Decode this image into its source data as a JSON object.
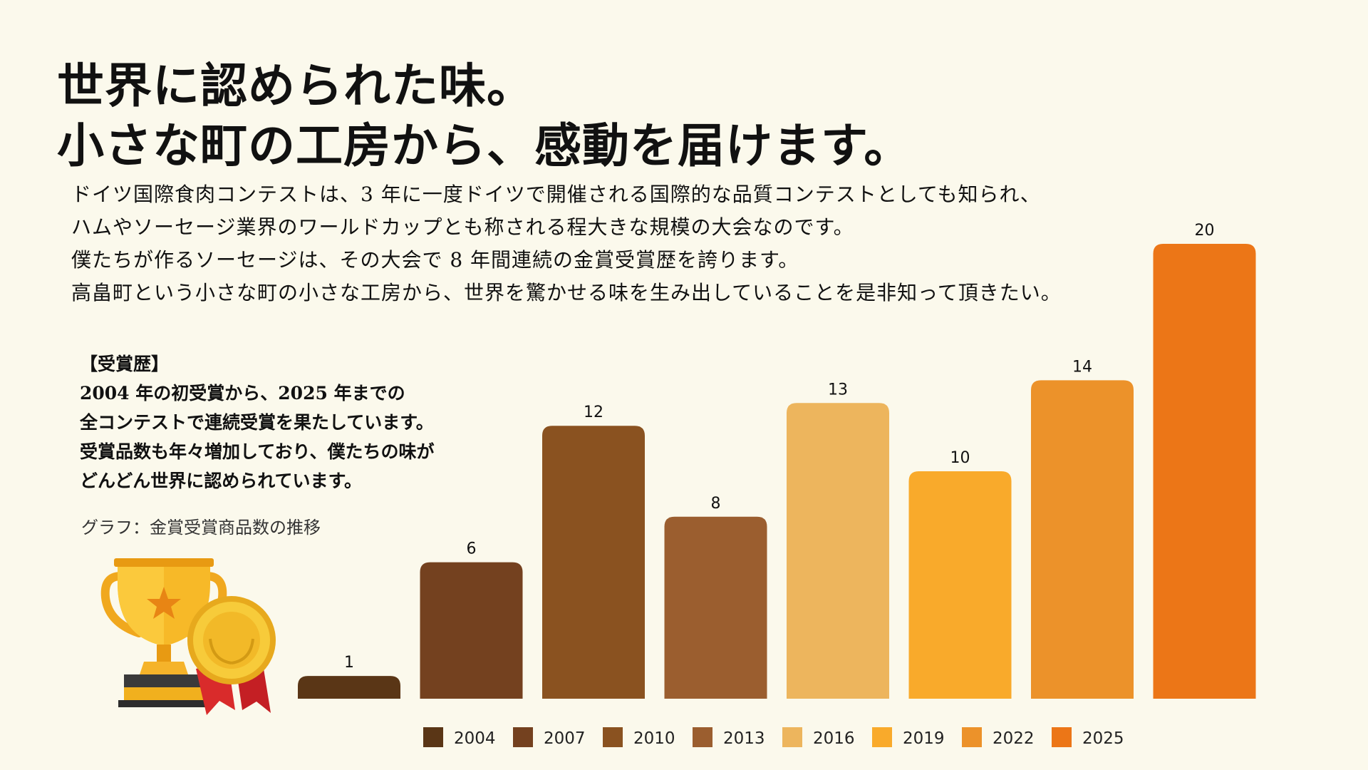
{
  "headline": {
    "line1": "世界に認められた味。",
    "line2": "小さな町の工房から、感動を届けます。"
  },
  "intro": {
    "lines": [
      "ドイツ国際食肉コンテストは、3 年に一度ドイツで開催される国際的な品質コンテストとしても知られ、",
      "ハムやソーセージ業界のワールドカップとも称される程大きな規模の大会なのです。",
      "僕たちが作るソーセージは、その大会で 8 年間連続の金賞受賞歴を誇ります。",
      "高畠町という小さな町の小さな工房から、世界を驚かせる味を生み出していることを是非知って頂きたい。"
    ]
  },
  "award": {
    "heading": "【受賞歴】",
    "lines": [
      "2004 年の初受賞から、2025 年までの",
      "全コンテストで連続受賞を果たしています。",
      "受賞品数も年々増加しており、僕たちの味が",
      "どんどん世界に認められています。"
    ],
    "caption": "グラフ：金賞受賞商品数の推移"
  },
  "colors": {
    "background": "#fbf9ec",
    "bars": [
      "#5a3616",
      "#74411f",
      "#8a5220",
      "#9b5e2f",
      "#edb55d",
      "#f9aa2b",
      "#ec922a",
      "#ec7617"
    ]
  },
  "icons": {
    "trophy": "trophy-icon",
    "medal": "gold-medal-icon"
  },
  "chart_data": {
    "type": "bar",
    "title": "金賞受賞商品数の推移",
    "categories": [
      "2004",
      "2007",
      "2010",
      "2013",
      "2016",
      "2019",
      "2022",
      "2025"
    ],
    "values": [
      1,
      6,
      12,
      8,
      13,
      10,
      14,
      20
    ],
    "legend": "bottom",
    "ylim": [
      0,
      20
    ],
    "grid": false,
    "xlabel": "",
    "ylabel": ""
  }
}
